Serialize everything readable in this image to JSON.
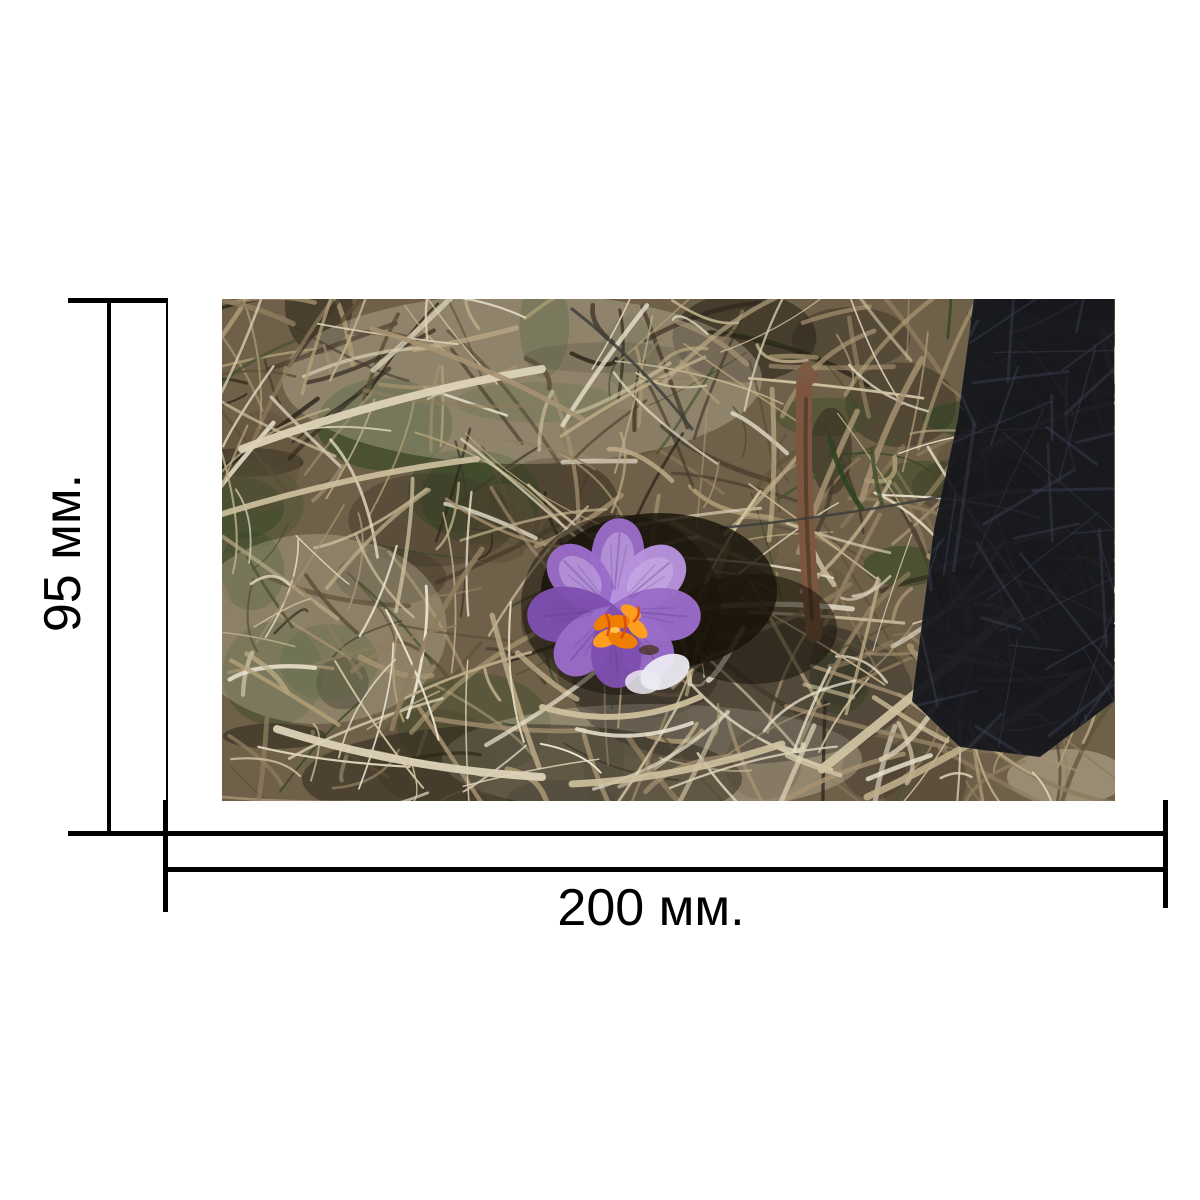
{
  "annotations": {
    "color": "#000000",
    "height_label": "95 мм.",
    "width_label": "200 мм.",
    "height_mm": 95,
    "width_mm": 200
  },
  "photo": {
    "subject": "Purple crocus flower blooming among dry straw and withered grass, dark shadow in upper right corner",
    "palette": {
      "base": "#6e6049",
      "lit": "#e9dfc4",
      "hole": "#171209",
      "shadow": "#14151c",
      "shadow_straw": "#3b3e52",
      "stick_brown": "#7d5640",
      "stick_dark": "#4e3b28",
      "twig_gray": "#3f3f3c",
      "straw_light": [
        "#ddd3b8",
        "#cfc2a0",
        "#bfae8a",
        "#ece5d2"
      ],
      "straw_mid": [
        "#a69272",
        "#8e7c5e",
        "#b3a179"
      ],
      "straw_dark": [
        "#5c4e38",
        "#42372a",
        "#2a2318"
      ],
      "green": [
        "#44502e",
        "#2e4420"
      ],
      "flower": {
        "petal_dark": "#7e4fb0",
        "petal_mid": "#9a6cc9",
        "petal_light": "#b793de",
        "petal_highlight": "#cdb6e8",
        "petal_vein": "#5e3790",
        "stamen": "#ff9d1e",
        "stamen_deep": "#ef7d00",
        "stamen_red": "#d7480e",
        "stamen_bright": "#ffc95e",
        "white_base": "#eceaf2"
      }
    }
  }
}
